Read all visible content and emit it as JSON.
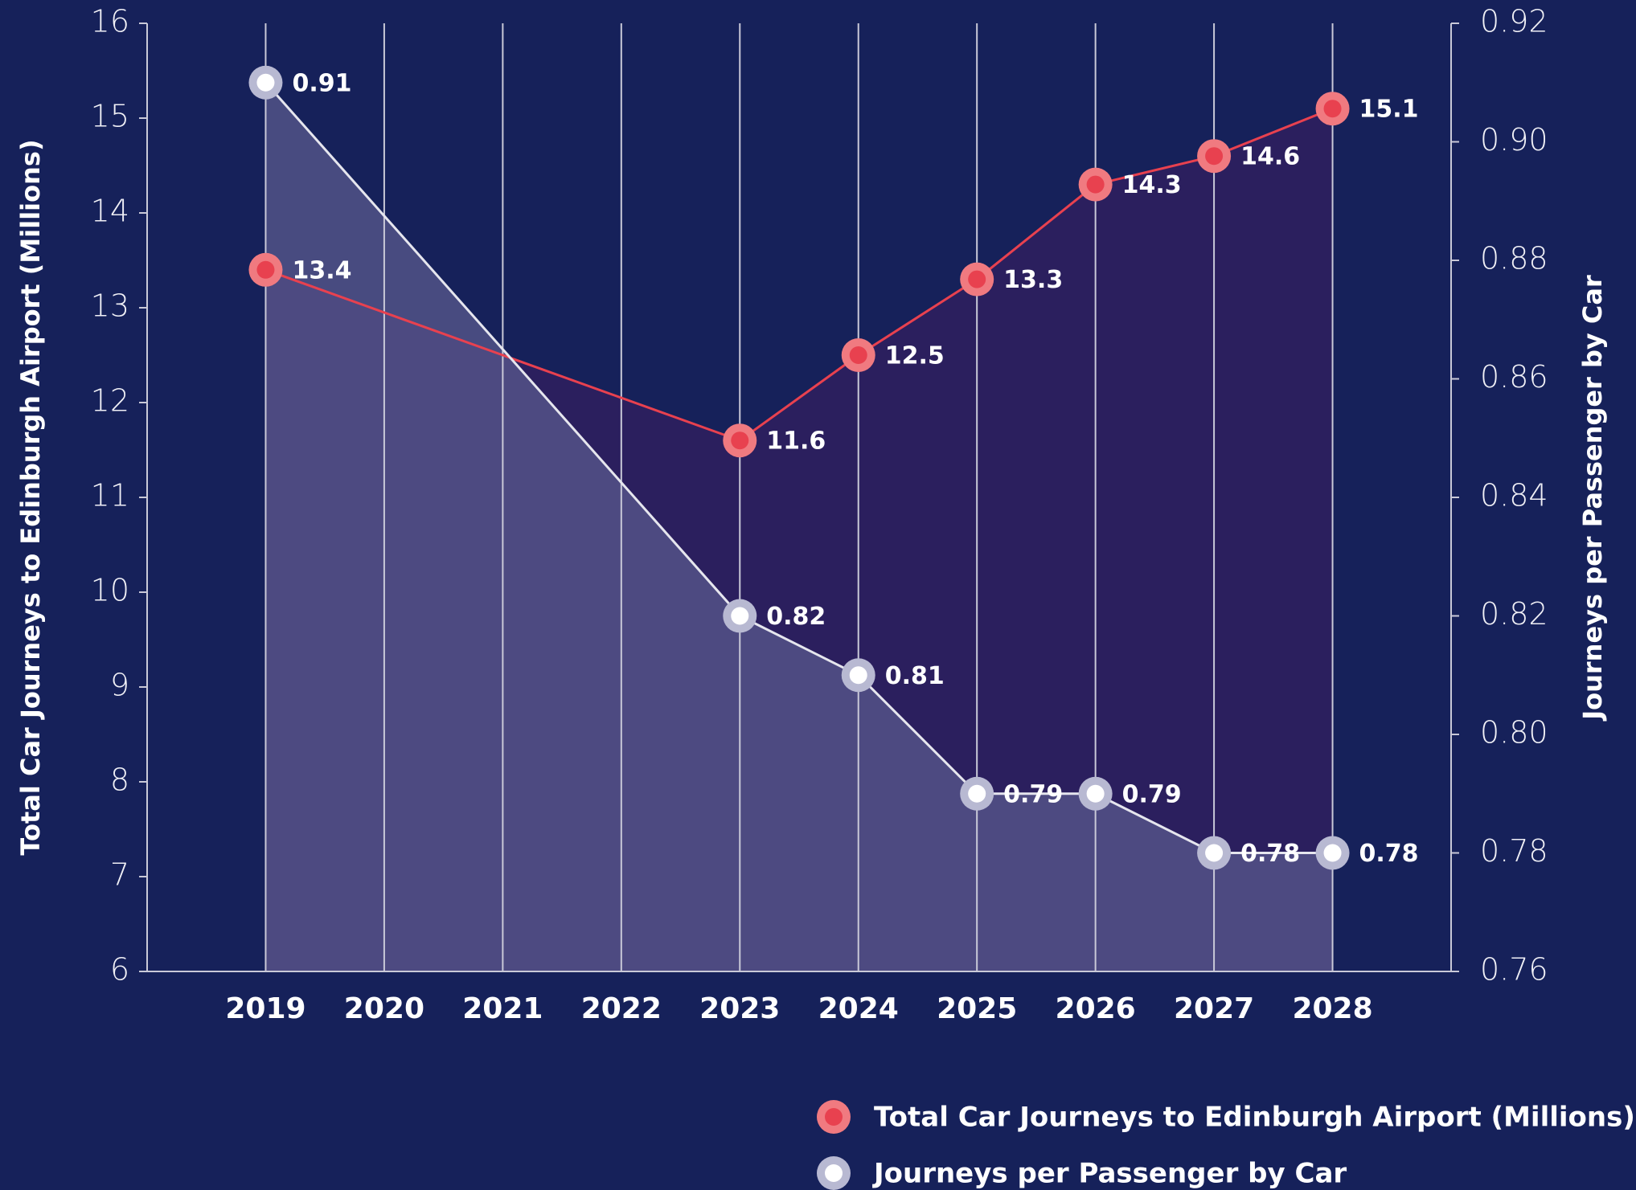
{
  "chart_data": {
    "type": "line",
    "ylabel": "Total Car Journeys to Edinburgh Airport (Millions)",
    "y2label": "Journeys per Passenger by Car",
    "xlim": [
      2018,
      2029
    ],
    "xticks": [
      2019,
      2020,
      2021,
      2022,
      2023,
      2024,
      2025,
      2026,
      2027,
      2028
    ],
    "ylim": [
      6,
      16
    ],
    "yticks": [
      6,
      7,
      8,
      9,
      10,
      11,
      12,
      13,
      14,
      15,
      16
    ],
    "y2lim": [
      0.76,
      0.92
    ],
    "y2ticks": [
      0.76,
      0.78,
      {
        "value": 0.8,
        "label": "0.80"
      },
      0.82,
      0.84,
      0.86,
      0.88,
      {
        "value": 0.9,
        "label": "0.90"
      },
      0.92
    ],
    "grid": true,
    "legend": "bottom-right",
    "series": [
      {
        "name": "Total Car Journeys to Edinburgh Airport (Millions)",
        "color": "#e8414f",
        "halo": "#f07a80",
        "area_color": "#2b1f5e",
        "x": [
          2019,
          2023,
          2024,
          2025,
          2026,
          2027,
          2028
        ],
        "values": [
          13.4,
          11.6,
          12.5,
          13.3,
          14.3,
          14.6,
          15.1
        ]
      },
      {
        "name": "Journeys per Passenger by Car",
        "color": "#ffffff",
        "halo": "#b8b9d2",
        "area_color": "#5a5a8e",
        "axis": "y2",
        "x": [
          2019,
          2023,
          2024,
          2025,
          2026,
          2027,
          2028
        ],
        "values": [
          0.91,
          0.82,
          0.81,
          0.79,
          0.79,
          0.78,
          0.78
        ]
      }
    ]
  }
}
